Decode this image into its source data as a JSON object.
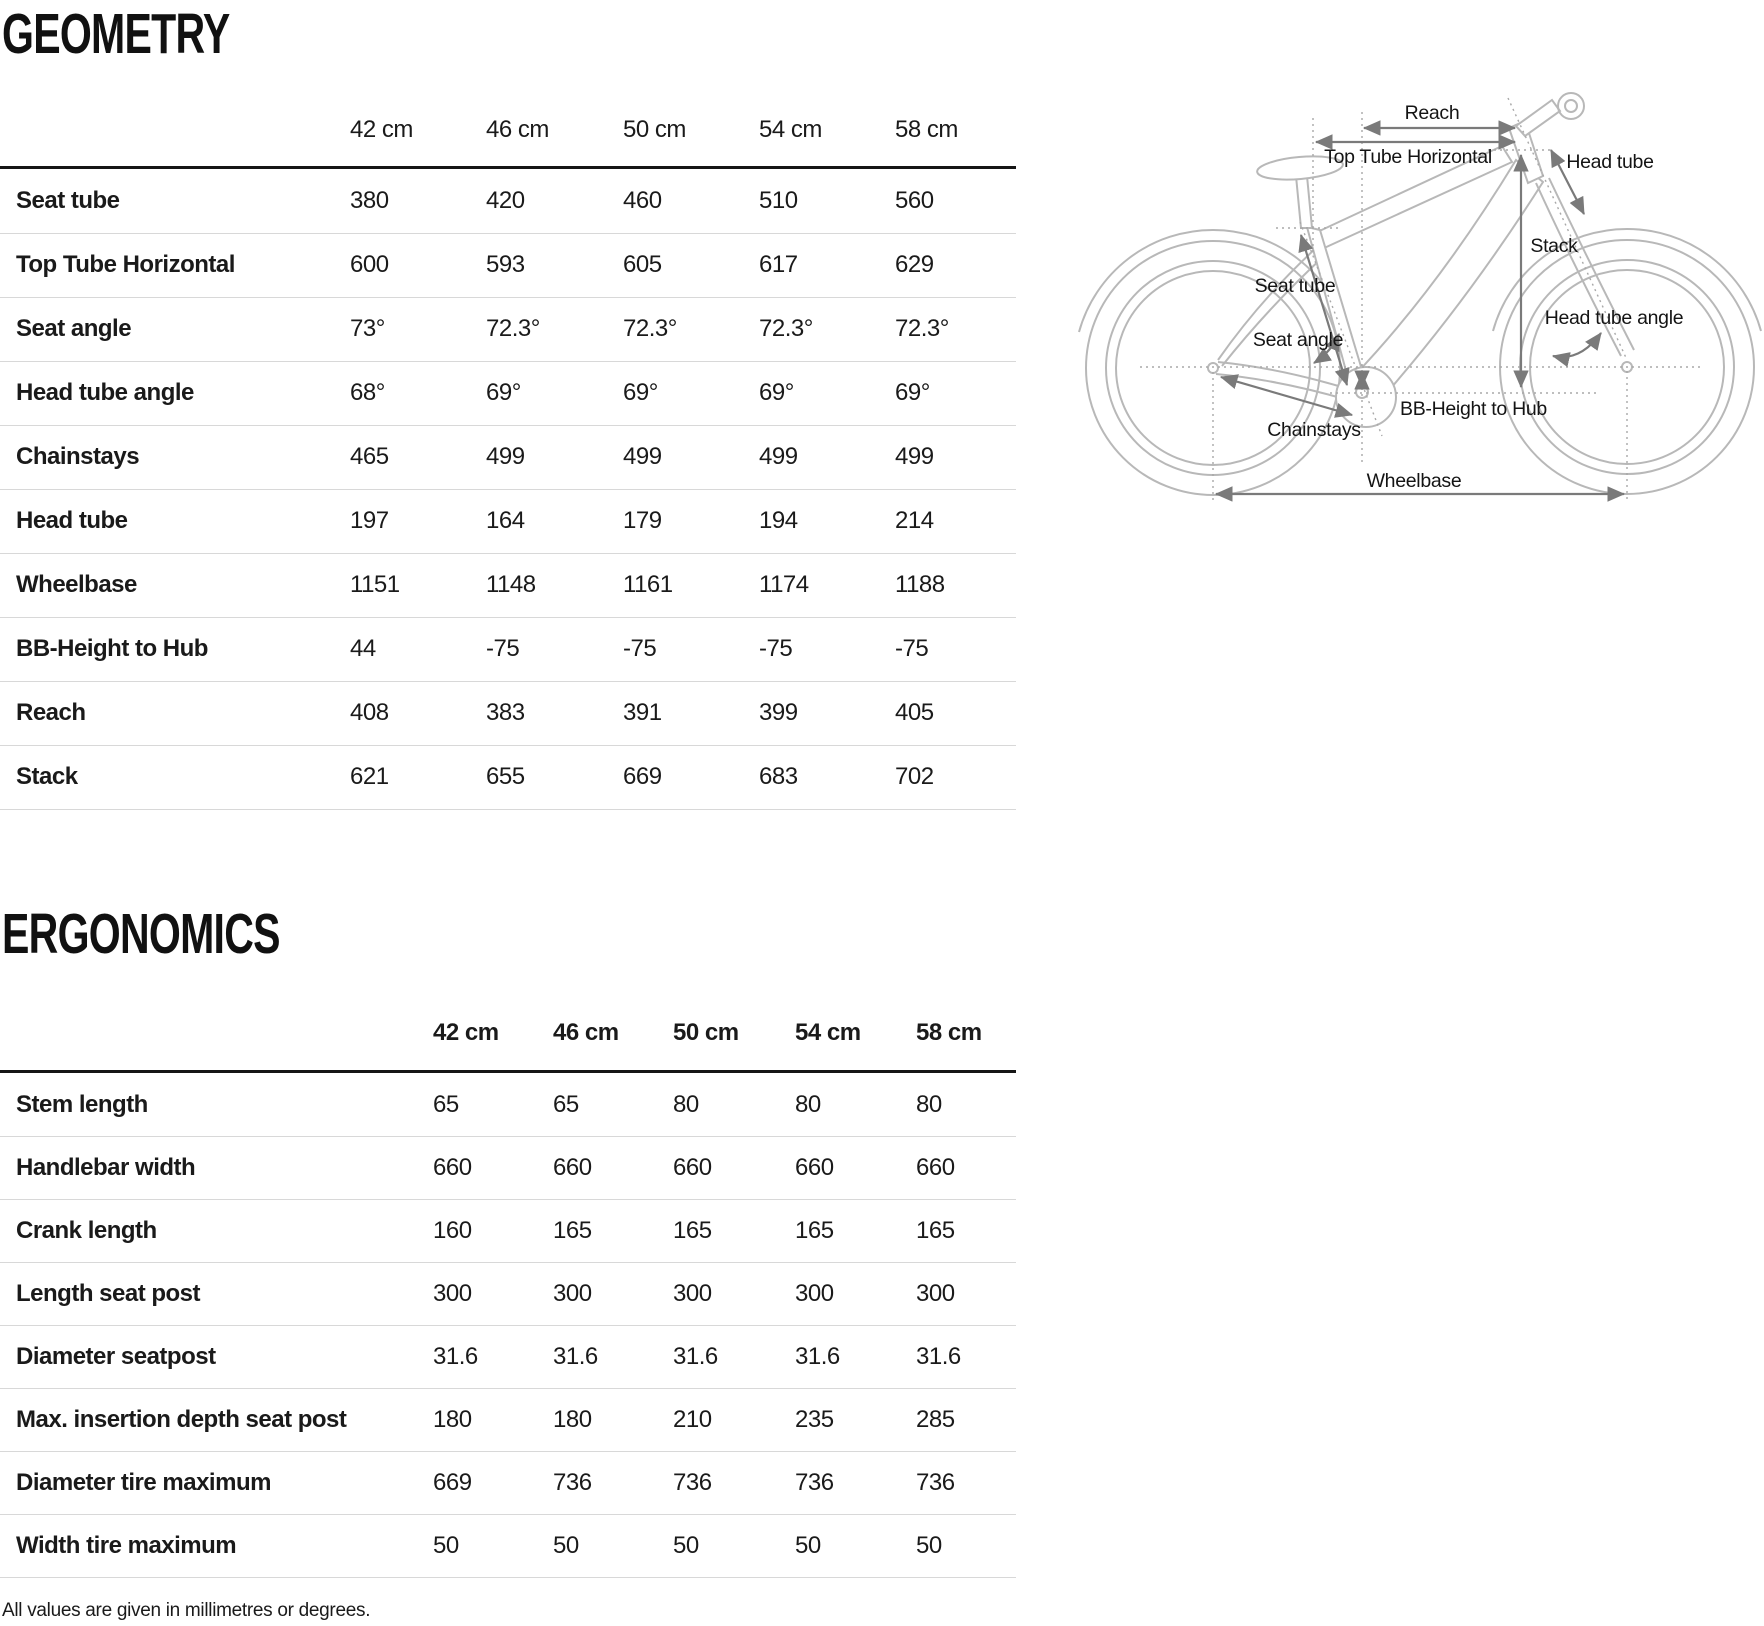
{
  "geometry": {
    "title": "GEOMETRY",
    "columns": [
      "42 cm",
      "46 cm",
      "50 cm",
      "54 cm",
      "58 cm"
    ],
    "rows": [
      {
        "label": "Seat tube",
        "values": [
          "380",
          "420",
          "460",
          "510",
          "560"
        ]
      },
      {
        "label": "Top Tube Horizontal",
        "values": [
          "600",
          "593",
          "605",
          "617",
          "629"
        ]
      },
      {
        "label": "Seat angle",
        "values": [
          "73°",
          "72.3°",
          "72.3°",
          "72.3°",
          "72.3°"
        ]
      },
      {
        "label": "Head tube angle",
        "values": [
          "68°",
          "69°",
          "69°",
          "69°",
          "69°"
        ]
      },
      {
        "label": "Chainstays",
        "values": [
          "465",
          "499",
          "499",
          "499",
          "499"
        ]
      },
      {
        "label": "Head tube",
        "values": [
          "197",
          "164",
          "179",
          "194",
          "214"
        ]
      },
      {
        "label": "Wheelbase",
        "values": [
          "1151",
          "1148",
          "1161",
          "1174",
          "1188"
        ]
      },
      {
        "label": "BB-Height to Hub",
        "values": [
          "44",
          "-75",
          "-75",
          "-75",
          "-75"
        ]
      },
      {
        "label": "Reach",
        "values": [
          "408",
          "383",
          "391",
          "399",
          "405"
        ]
      },
      {
        "label": "Stack",
        "values": [
          "621",
          "655",
          "669",
          "683",
          "702"
        ]
      }
    ]
  },
  "ergonomics": {
    "title": "ERGONOMICS",
    "columns": [
      "42 cm",
      "46 cm",
      "50 cm",
      "54 cm",
      "58 cm"
    ],
    "rows": [
      {
        "label": "Stem length",
        "values": [
          "65",
          "65",
          "80",
          "80",
          "80"
        ]
      },
      {
        "label": "Handlebar width",
        "values": [
          "660",
          "660",
          "660",
          "660",
          "660"
        ]
      },
      {
        "label": "Crank length",
        "values": [
          "160",
          "165",
          "165",
          "165",
          "165"
        ]
      },
      {
        "label": "Length seat post",
        "values": [
          "300",
          "300",
          "300",
          "300",
          "300"
        ]
      },
      {
        "label": "Diameter seatpost",
        "values": [
          "31.6",
          "31.6",
          "31.6",
          "31.6",
          "31.6"
        ]
      },
      {
        "label": "Max. insertion depth seat post",
        "values": [
          "180",
          "180",
          "210",
          "235",
          "285"
        ]
      },
      {
        "label": "Diameter tire maximum",
        "values": [
          "669",
          "736",
          "736",
          "736",
          "736"
        ]
      },
      {
        "label": "Width tire maximum",
        "values": [
          "50",
          "50",
          "50",
          "50",
          "50"
        ]
      }
    ]
  },
  "diagram": {
    "labels": {
      "reach": "Reach",
      "top_tube_horizontal": "Top Tube Horizontal",
      "head_tube": "Head tube",
      "stack": "Stack",
      "seat_tube": "Seat tube",
      "seat_angle": "Seat angle",
      "head_tube_angle": "Head tube angle",
      "bb_height_to_hub": "BB-Height to Hub",
      "chainstays": "Chainstays",
      "wheelbase": "Wheelbase"
    }
  },
  "footnote": "All values are given in millimetres or degrees.",
  "colors": {
    "text": "#1a1a1a",
    "table_rule_thick": "#161616",
    "table_rule_thin": "#d8d8d8",
    "drawing_line": "#b8b8b8",
    "dimension_line": "#7a7a7a",
    "background": "#ffffff"
  }
}
